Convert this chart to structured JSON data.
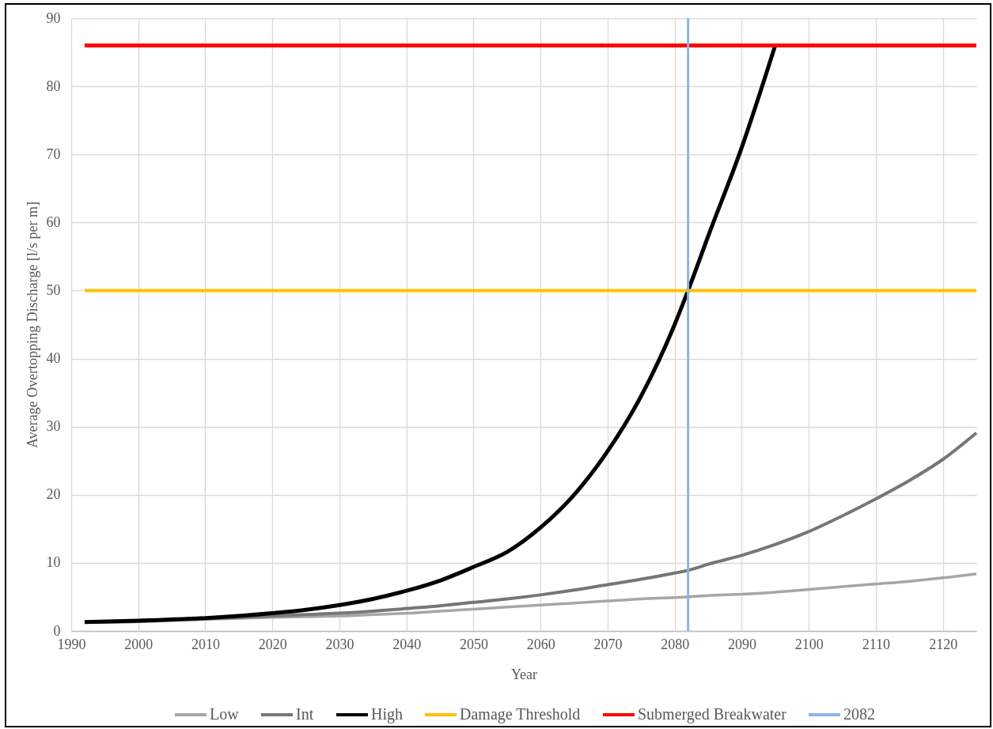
{
  "chart_data": {
    "type": "line",
    "xlabel": "Year",
    "ylabel": "Average Overtopping Discharge [l/s per m]",
    "xlim": [
      1990,
      2125
    ],
    "xticks": [
      1990,
      2000,
      2010,
      2020,
      2030,
      2040,
      2050,
      2060,
      2070,
      2080,
      2090,
      2100,
      2110,
      2120
    ],
    "ylim": [
      0,
      90
    ],
    "yticks": [
      0,
      10,
      20,
      30,
      40,
      50,
      60,
      70,
      80,
      90
    ],
    "grid": true,
    "legend": "bottom",
    "x": [
      1992,
      2000,
      2010,
      2020,
      2025,
      2030,
      2035,
      2040,
      2045,
      2050,
      2055,
      2060,
      2065,
      2070,
      2075,
      2080,
      2082,
      2085,
      2090,
      2095,
      2100,
      2105,
      2110,
      2115,
      2120,
      2125
    ],
    "series": [
      {
        "name": "Low",
        "color": "#a6a6a6",
        "values": [
          1.3,
          1.4,
          1.7,
          2.0,
          2.1,
          2.2,
          2.4,
          2.6,
          2.9,
          3.2,
          3.5,
          3.8,
          4.1,
          4.4,
          4.7,
          4.9,
          5.0,
          5.2,
          5.4,
          5.7,
          6.1,
          6.5,
          6.9,
          7.3,
          7.8,
          8.4
        ]
      },
      {
        "name": "Int",
        "color": "#767676",
        "values": [
          1.3,
          1.4,
          1.8,
          2.2,
          2.4,
          2.6,
          2.9,
          3.3,
          3.7,
          4.2,
          4.7,
          5.3,
          6.0,
          6.8,
          7.6,
          8.5,
          8.9,
          9.8,
          11.1,
          12.7,
          14.6,
          16.9,
          19.4,
          22.1,
          25.2,
          29.1
        ]
      },
      {
        "name": "High",
        "color": "#000000",
        "values": [
          1.3,
          1.5,
          1.9,
          2.6,
          3.1,
          3.8,
          4.7,
          5.9,
          7.4,
          9.4,
          11.6,
          15.2,
          20.0,
          26.4,
          34.5,
          45.0,
          50.0,
          58.0,
          71.0,
          86,
          null,
          null,
          null,
          null,
          null,
          null
        ]
      },
      {
        "name": "Damage Threshold",
        "color": "#ffc000",
        "x": [
          1992,
          2125
        ],
        "values": [
          50,
          50
        ]
      },
      {
        "name": "Submerged Breakwater",
        "color": "#ff0000",
        "x": [
          1992,
          2125
        ],
        "values": [
          86,
          86
        ]
      },
      {
        "name": "2082",
        "color": "#8eb4e3",
        "x": [
          2082,
          2082
        ],
        "values": [
          0,
          90
        ]
      }
    ]
  }
}
